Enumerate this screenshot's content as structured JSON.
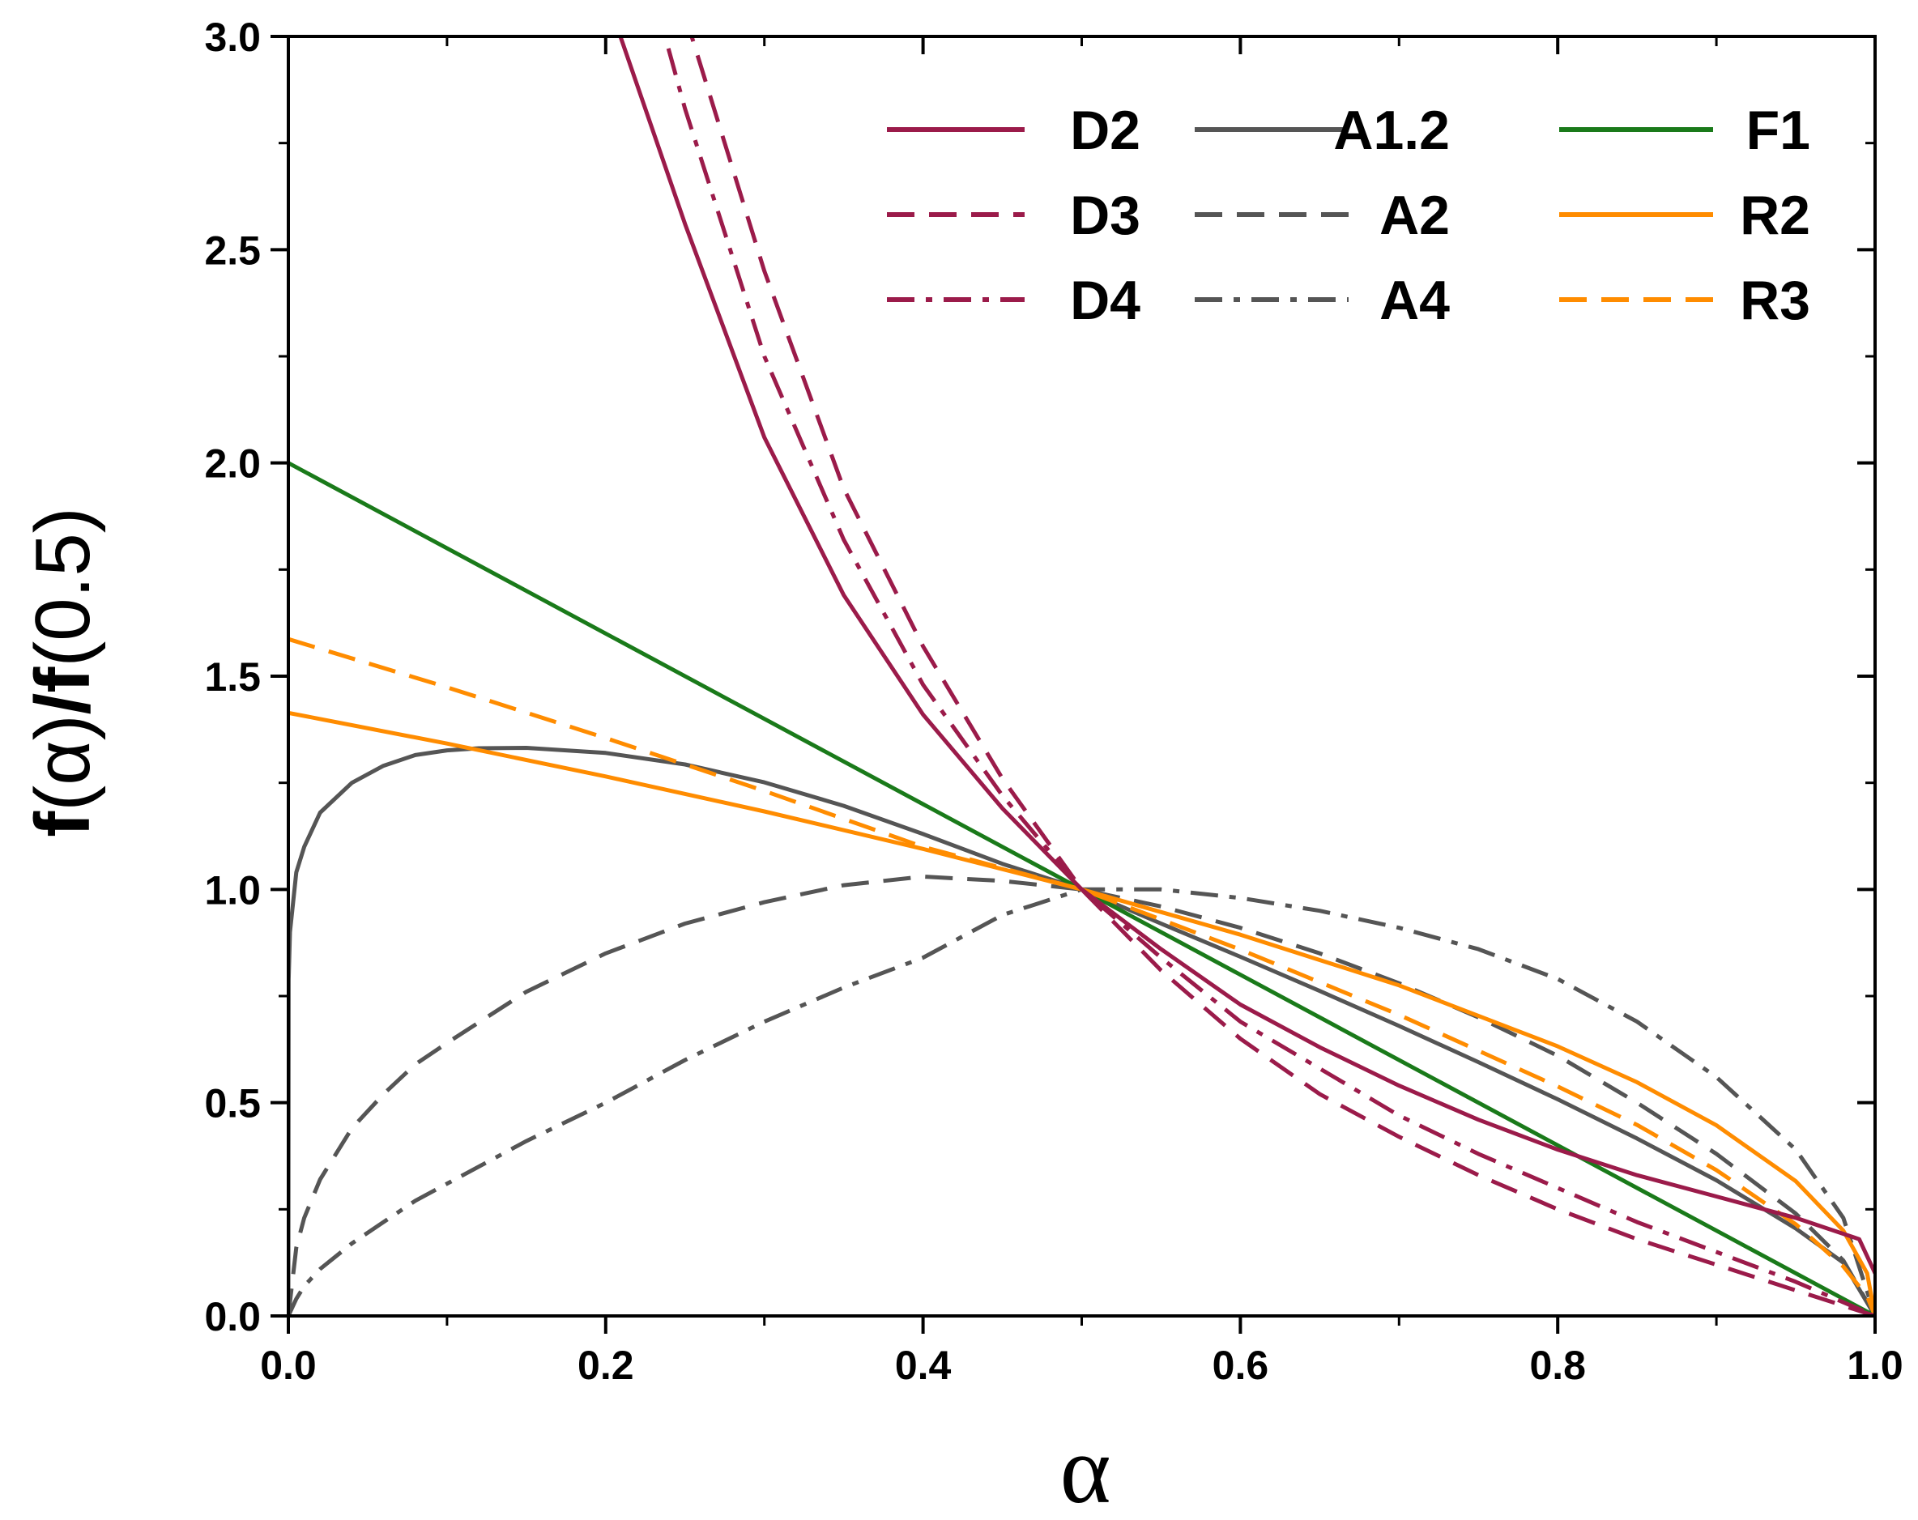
{
  "chart_data": {
    "type": "line",
    "title": "",
    "xlabel": "α",
    "ylabel": "f(α)/f(0.5)",
    "ylabel_parts": {
      "f1": "f",
      "p1": "(α)",
      "slash": "/f",
      "p2": "(0.5)"
    },
    "xlim": [
      0.0,
      1.0
    ],
    "ylim": [
      0.0,
      3.0
    ],
    "xticks": [
      "0.0",
      "0.2",
      "0.4",
      "0.6",
      "0.8",
      "1.0"
    ],
    "yticks": [
      "0.0",
      "0.5",
      "1.0",
      "1.5",
      "2.0",
      "2.5",
      "3.0"
    ],
    "legend_position": "top-right",
    "colors": {
      "D": "#9b1b4a",
      "A": "#555555",
      "F": "#1a7a1a",
      "R": "#ff8c00"
    },
    "series": [
      {
        "name": "D2",
        "group": "D",
        "style": "solid",
        "x": [
          0.2,
          0.25,
          0.3,
          0.35,
          0.4,
          0.45,
          0.5,
          0.55,
          0.6,
          0.65,
          0.7,
          0.75,
          0.8,
          0.85,
          0.9,
          0.95,
          0.99,
          1.0
        ],
        "y": [
          3.1,
          2.56,
          2.06,
          1.69,
          1.41,
          1.19,
          1.0,
          0.86,
          0.73,
          0.63,
          0.54,
          0.46,
          0.39,
          0.33,
          0.28,
          0.23,
          0.18,
          0.1
        ]
      },
      {
        "name": "D3",
        "group": "D",
        "style": "dashed",
        "x": [
          0.25,
          0.3,
          0.35,
          0.4,
          0.45,
          0.5,
          0.55,
          0.6,
          0.65,
          0.7,
          0.75,
          0.8,
          0.85,
          0.9,
          0.95,
          1.0
        ],
        "y": [
          3.05,
          2.45,
          1.94,
          1.57,
          1.26,
          1.0,
          0.81,
          0.65,
          0.52,
          0.42,
          0.33,
          0.25,
          0.18,
          0.12,
          0.06,
          0.0
        ]
      },
      {
        "name": "D4",
        "group": "D",
        "style": "dashdot",
        "x": [
          0.23,
          0.25,
          0.3,
          0.35,
          0.4,
          0.45,
          0.5,
          0.55,
          0.6,
          0.65,
          0.7,
          0.75,
          0.8,
          0.85,
          0.9,
          0.95,
          1.0
        ],
        "y": [
          3.1,
          2.83,
          2.25,
          1.82,
          1.48,
          1.22,
          1.0,
          0.84,
          0.69,
          0.58,
          0.47,
          0.38,
          0.3,
          0.22,
          0.15,
          0.08,
          0.0
        ]
      },
      {
        "name": "A1.2",
        "group": "A",
        "style": "solid",
        "x": [
          0.0,
          0.0002,
          0.001,
          0.005,
          0.01,
          0.02,
          0.04,
          0.06,
          0.08,
          0.1,
          0.12,
          0.15,
          0.2,
          0.25,
          0.3,
          0.35,
          0.4,
          0.45,
          0.5,
          0.55,
          0.6,
          0.65,
          0.7,
          0.75,
          0.8,
          0.85,
          0.9,
          0.95,
          0.98,
          1.0
        ],
        "y": [
          0.0,
          0.79,
          0.9,
          1.04,
          1.1,
          1.18,
          1.25,
          1.29,
          1.315,
          1.326,
          1.331,
          1.332,
          1.32,
          1.293,
          1.251,
          1.196,
          1.13,
          1.06,
          1.0,
          0.92,
          0.842,
          0.762,
          0.68,
          0.595,
          0.508,
          0.416,
          0.318,
          0.205,
          0.125,
          0.0
        ]
      },
      {
        "name": "A2",
        "group": "A",
        "style": "dashed",
        "x": [
          0.0,
          0.005,
          0.01,
          0.02,
          0.04,
          0.06,
          0.08,
          0.1,
          0.15,
          0.2,
          0.25,
          0.3,
          0.35,
          0.4,
          0.45,
          0.5,
          0.55,
          0.6,
          0.65,
          0.7,
          0.75,
          0.8,
          0.85,
          0.9,
          0.95,
          0.98,
          1.0
        ],
        "y": [
          0.0,
          0.16,
          0.23,
          0.32,
          0.44,
          0.52,
          0.59,
          0.64,
          0.76,
          0.85,
          0.92,
          0.97,
          1.01,
          1.03,
          1.02,
          1.0,
          0.96,
          0.91,
          0.85,
          0.78,
          0.7,
          0.61,
          0.5,
          0.38,
          0.24,
          0.13,
          0.0
        ]
      },
      {
        "name": "A4",
        "group": "A",
        "style": "dashdot",
        "x": [
          0.0,
          0.005,
          0.01,
          0.02,
          0.04,
          0.06,
          0.08,
          0.1,
          0.15,
          0.2,
          0.25,
          0.3,
          0.35,
          0.4,
          0.45,
          0.5,
          0.55,
          0.6,
          0.65,
          0.7,
          0.75,
          0.8,
          0.85,
          0.9,
          0.95,
          0.98,
          1.0
        ],
        "y": [
          0.0,
          0.04,
          0.07,
          0.11,
          0.17,
          0.22,
          0.27,
          0.31,
          0.41,
          0.5,
          0.6,
          0.69,
          0.77,
          0.84,
          0.94,
          1.0,
          1.0,
          0.98,
          0.95,
          0.91,
          0.86,
          0.79,
          0.69,
          0.56,
          0.39,
          0.23,
          0.0
        ]
      },
      {
        "name": "F1",
        "group": "F",
        "style": "solid",
        "x": [
          0.0,
          1.0
        ],
        "y": [
          2.0,
          0.0
        ]
      },
      {
        "name": "R2",
        "group": "R",
        "style": "solid",
        "x": [
          0.0,
          0.1,
          0.2,
          0.3,
          0.4,
          0.5,
          0.6,
          0.7,
          0.8,
          0.85,
          0.9,
          0.95,
          0.98,
          0.995,
          1.0
        ],
        "y": [
          1.414,
          1.342,
          1.265,
          1.183,
          1.095,
          1.0,
          0.894,
          0.775,
          0.632,
          0.548,
          0.447,
          0.316,
          0.2,
          0.1,
          0.0
        ]
      },
      {
        "name": "R3",
        "group": "R",
        "style": "dashed",
        "x": [
          0.0,
          0.1,
          0.2,
          0.3,
          0.4,
          0.5,
          0.6,
          0.7,
          0.8,
          0.85,
          0.9,
          0.95,
          0.98,
          0.995,
          1.0
        ],
        "y": [
          1.587,
          1.474,
          1.355,
          1.231,
          1.1,
          1.0,
          0.859,
          0.706,
          0.538,
          0.448,
          0.342,
          0.215,
          0.116,
          0.046,
          0.0
        ]
      }
    ],
    "legend_columns": [
      [
        "D2",
        "D3",
        "D4"
      ],
      [
        "A1.2",
        "A2",
        "A4"
      ],
      [
        "F1",
        "R2",
        "R3"
      ]
    ]
  }
}
